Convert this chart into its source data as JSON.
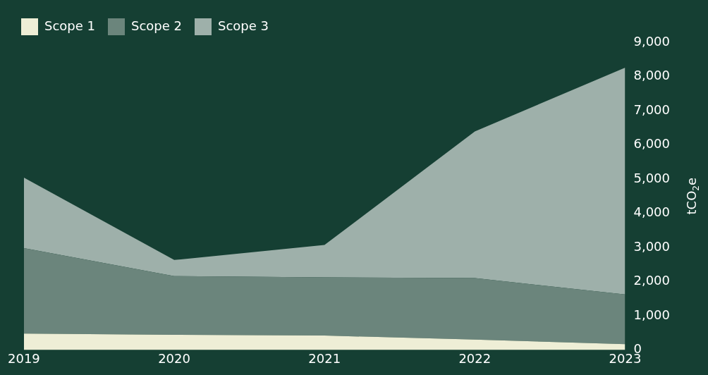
{
  "chart_data": {
    "type": "area",
    "stacked": true,
    "categories": [
      "2019",
      "2020",
      "2021",
      "2022",
      "2023"
    ],
    "series": [
      {
        "name": "Scope 1",
        "color": "#eeeed6",
        "values": [
          480,
          440,
          420,
          300,
          170
        ]
      },
      {
        "name": "Scope 2",
        "color": "#6b857c",
        "values": [
          2500,
          1720,
          1700,
          1800,
          1450
        ]
      },
      {
        "name": "Scope 3",
        "color": "#9eb0aa",
        "values": [
          2060,
          470,
          950,
          4290,
          6640
        ]
      }
    ],
    "ylabel": "tCO$_{2}$e",
    "ylim": [
      0,
      9000
    ],
    "yticks": [
      0,
      {
        "value": 1000,
        "label": "1,000"
      },
      {
        "value": 2000,
        "label": "2,000"
      },
      {
        "value": 3000,
        "label": "3,000"
      },
      {
        "value": 4000,
        "label": "4,000"
      },
      {
        "value": 5000,
        "label": "5,000"
      },
      {
        "value": 6000,
        "label": "6,000"
      },
      {
        "value": 7000,
        "label": "7,000"
      },
      {
        "value": 8000,
        "label": "8,000"
      },
      {
        "value": 9000,
        "label": "9,000"
      }
    ],
    "grid": false,
    "legend": "top left"
  }
}
